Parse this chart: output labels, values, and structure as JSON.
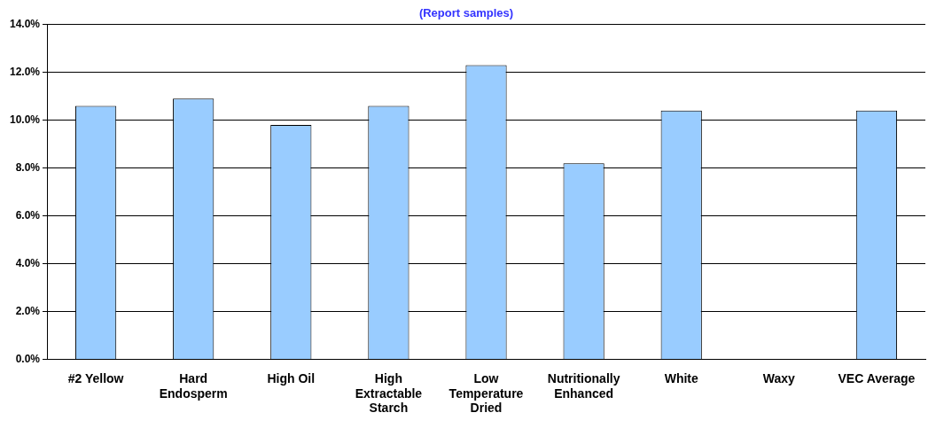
{
  "chart_data": {
    "type": "bar",
    "subtitle": "(Report samples)",
    "categories": [
      "#2 Yellow",
      "Hard Endosperm",
      "High Oil",
      "High Extractable Starch",
      "Low Temperature Dried",
      "Nutritionally Enhanced",
      "White",
      "Waxy",
      "VEC Average"
    ],
    "values": [
      10.6,
      10.9,
      9.8,
      10.6,
      12.3,
      8.2,
      10.4,
      null,
      10.4
    ],
    "color": "#99ccff",
    "ylim": [
      0,
      14
    ],
    "yticks": [
      {
        "value": 0,
        "label": "0.0%"
      },
      {
        "value": 2,
        "label": "2.0%"
      },
      {
        "value": 4,
        "label": "4.0%"
      },
      {
        "value": 6,
        "label": "6.0%"
      },
      {
        "value": 8,
        "label": "8.0%"
      },
      {
        "value": 10,
        "label": "10.0%"
      },
      {
        "value": 12,
        "label": "12.0%"
      },
      {
        "value": 14,
        "label": "14.0%"
      }
    ],
    "grid": "y",
    "legend": false
  }
}
